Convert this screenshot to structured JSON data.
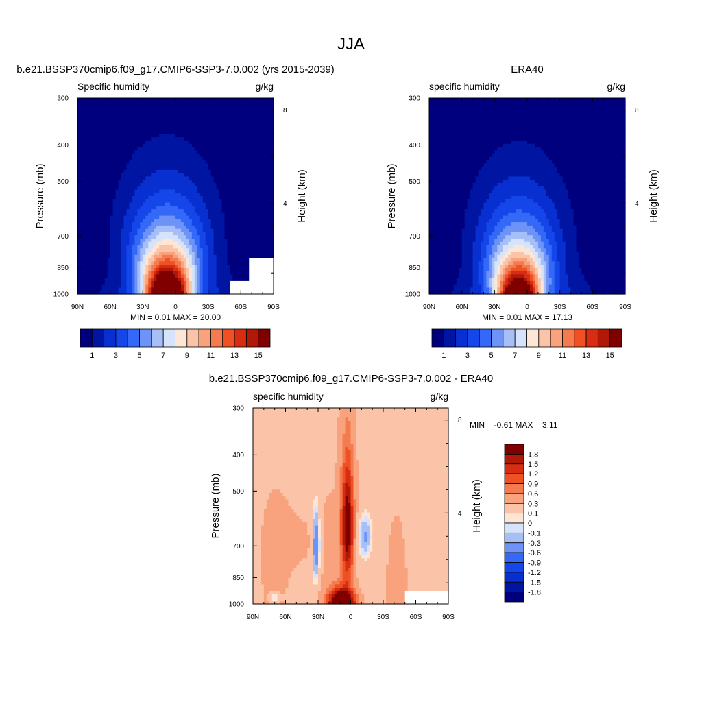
{
  "figure_title": "JJA",
  "chart_data": [
    {
      "type": "heatmap",
      "panel": "model",
      "title": "b.e21.BSSP370cmip6.f09_g17.CMIP6-SSP3-7.0.002 (yrs 2015-2039)",
      "left_string": "Specific humidity",
      "right_string": "g/kg",
      "xlabel": "",
      "ylabel": "Pressure (mb)",
      "y2label": "Height (km)",
      "x_ticks": [
        "90N",
        "60N",
        "30N",
        "0",
        "30S",
        "60S",
        "90S"
      ],
      "x_range": [
        90,
        -90
      ],
      "y_ticks": [
        "300",
        "400",
        "500",
        "700",
        "850",
        "1000"
      ],
      "y_range_mb": [
        300,
        1000
      ],
      "y2_ticks": [
        "8",
        "4"
      ],
      "stats": {
        "min_label": "MIN =",
        "min": "0.01",
        "max_label": "MAX =",
        "max": "20.00"
      },
      "levels": [
        1,
        2,
        3,
        4,
        5,
        6,
        7,
        8,
        9,
        10,
        11,
        12,
        13,
        14,
        15
      ],
      "colorbar_labels": [
        "1",
        "3",
        "5",
        "7",
        "9",
        "11",
        "13",
        "15"
      ],
      "peak_lat": 8,
      "peak_value": 20,
      "width_deg": 19,
      "upper_widen": 1.0,
      "scale_height": 0.41,
      "floor_offset": 0
    },
    {
      "type": "heatmap",
      "panel": "obs",
      "title": "ERA40",
      "left_string": "specific humidity",
      "right_string": "g/kg",
      "xlabel": "",
      "ylabel": "Pressure (mb)",
      "y2label": "Height (km)",
      "x_ticks": [
        "90N",
        "60N",
        "30N",
        "0",
        "30S",
        "60S",
        "90S"
      ],
      "x_range": [
        90,
        -90
      ],
      "y_ticks": [
        "300",
        "400",
        "500",
        "700",
        "850",
        "1000"
      ],
      "y_range_mb": [
        300,
        1000
      ],
      "y2_ticks": [
        "8",
        "4"
      ],
      "stats": {
        "min_label": "MIN =",
        "min": "0.01",
        "max_label": "MAX =",
        "max": "17.13"
      },
      "levels": [
        1,
        2,
        3,
        4,
        5,
        6,
        7,
        8,
        9,
        10,
        11,
        12,
        13,
        14,
        15
      ],
      "colorbar_labels": [
        "1",
        "3",
        "5",
        "7",
        "9",
        "11",
        "13",
        "15"
      ],
      "peak_lat": 8,
      "peak_value": 17.13,
      "width_deg": 19,
      "upper_widen": 1.0,
      "scale_height": 0.4,
      "floor_offset": 0
    },
    {
      "type": "heatmap",
      "panel": "difference",
      "title": "b.e21.BSSP370cmip6.f09_g17.CMIP6-SSP3-7.0.002 - ERA40",
      "left_string": "specific humidity",
      "right_string": "g/kg",
      "xlabel": "",
      "ylabel": "Pressure (mb)",
      "y2label": "Height (km)",
      "x_ticks": [
        "90N",
        "60N",
        "30N",
        "0",
        "30S",
        "60S",
        "90S"
      ],
      "x_range": [
        90,
        -90
      ],
      "y_ticks": [
        "300",
        "400",
        "500",
        "700",
        "850",
        "1000"
      ],
      "y_range_mb": [
        300,
        1000
      ],
      "y2_ticks": [
        "8",
        "4"
      ],
      "stats": {
        "min_label": "MIN =",
        "min": "-0.61",
        "max_label": "MAX =",
        "max": "3.11"
      },
      "levels": [
        -1.8,
        -1.5,
        -1.2,
        -0.9,
        -0.6,
        -0.3,
        -0.1,
        0,
        0.1,
        0.3,
        0.6,
        0.9,
        1.2,
        1.5,
        1.8
      ],
      "colorbar_labels": [
        "1.8",
        "1.5",
        "1.2",
        "0.9",
        "0.6",
        "0.3",
        "0.1",
        "0",
        "-0.1",
        "-0.3",
        "-0.6",
        "-0.9",
        "-1.2",
        "-1.5",
        "-1.8"
      ]
    }
  ],
  "colors": {
    "background": "#ffffff",
    "missing": "#ffffff",
    "palette_16": [
      "#00007f",
      "#0016a3",
      "#0830d0",
      "#1546ea",
      "#3468f6",
      "#6e93f7",
      "#a7bff7",
      "#d6e4fb",
      "#fde6d6",
      "#fbc4a9",
      "#f8a27e",
      "#f47a50",
      "#ef5024",
      "#d72d12",
      "#b01807",
      "#800000"
    ]
  }
}
